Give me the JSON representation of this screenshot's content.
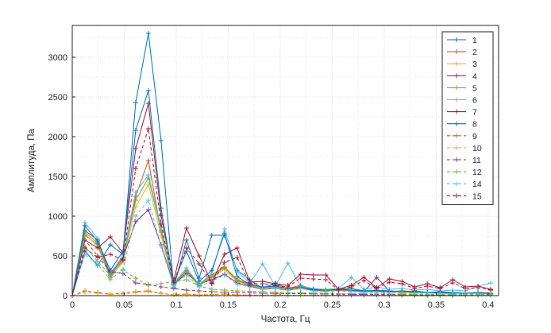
{
  "chart_data": {
    "type": "line",
    "title": "",
    "xlabel": "Частота, Гц",
    "ylabel": "Амплитуда, Па",
    "xlim": [
      0,
      0.41
    ],
    "ylim": [
      0,
      3400
    ],
    "xticks": [
      0,
      0.05,
      0.1,
      0.15,
      0.2,
      0.25,
      0.3,
      0.35,
      0.4
    ],
    "xtick_labels": [
      "0",
      "0.05",
      "0.1",
      "0.15",
      "0.2",
      "0.25",
      "0.3",
      "0.35",
      "0.4"
    ],
    "yticks": [
      0,
      500,
      1000,
      1500,
      2000,
      2500,
      3000
    ],
    "ytick_labels": [
      "0",
      "500",
      "1000",
      "1500",
      "2000",
      "2500",
      "3000"
    ],
    "grid": true,
    "legend_position": "top-right",
    "x": [
      0,
      0.0122,
      0.0244,
      0.0366,
      0.0488,
      0.061,
      0.0732,
      0.0854,
      0.0976,
      0.1098,
      0.122,
      0.1342,
      0.1464,
      0.1586,
      0.1708,
      0.183,
      0.1952,
      0.2074,
      0.2196,
      0.2318,
      0.2439,
      0.2561,
      0.2683,
      0.2805,
      0.2927,
      0.3049,
      0.3171,
      0.3293,
      0.3415,
      0.3537,
      0.3659,
      0.378,
      0.3902,
      0.4024
    ],
    "series": [
      {
        "name": "1",
        "color": "#0072BD",
        "style": "solid",
        "marker": "+",
        "values": [
          0,
          560,
          380,
          640,
          520,
          2430,
          3300,
          1950,
          100,
          700,
          220,
          760,
          760,
          320,
          200,
          90,
          160,
          80,
          110,
          90,
          60,
          80,
          90,
          60,
          70,
          60,
          50,
          60,
          40,
          50,
          40,
          30,
          40,
          30
        ]
      },
      {
        "name": "2",
        "color": "#D95319",
        "style": "solid",
        "marker": "+",
        "values": [
          0,
          760,
          640,
          250,
          440,
          1250,
          1700,
          800,
          150,
          320,
          140,
          260,
          360,
          200,
          150,
          100,
          120,
          90,
          130,
          80,
          70,
          80,
          70,
          60,
          60,
          50,
          60,
          50,
          40,
          40,
          40,
          30,
          40,
          30
        ]
      },
      {
        "name": "3",
        "color": "#EDB120",
        "style": "solid",
        "marker": "+",
        "values": [
          0,
          780,
          620,
          220,
          420,
          1120,
          1400,
          760,
          130,
          300,
          120,
          230,
          330,
          180,
          130,
          90,
          100,
          80,
          100,
          70,
          60,
          70,
          60,
          50,
          50,
          50,
          40,
          40,
          40,
          30,
          30,
          30,
          30,
          20
        ]
      },
      {
        "name": "4",
        "color": "#7E2F8E",
        "style": "solid",
        "marker": "+",
        "values": [
          0,
          820,
          700,
          260,
          480,
          930,
          1080,
          640,
          140,
          280,
          150,
          200,
          270,
          160,
          120,
          80,
          90,
          70,
          90,
          70,
          60,
          70,
          60,
          50,
          230,
          60,
          50,
          40,
          40,
          30,
          30,
          30,
          30,
          20
        ]
      },
      {
        "name": "5",
        "color": "#77AC30",
        "style": "solid",
        "marker": "+",
        "values": [
          0,
          800,
          660,
          230,
          460,
          1200,
          1480,
          820,
          140,
          310,
          130,
          240,
          350,
          190,
          140,
          100,
          110,
          90,
          110,
          80,
          60,
          70,
          60,
          50,
          60,
          50,
          50,
          40,
          40,
          40,
          30,
          30,
          30,
          20
        ]
      },
      {
        "name": "6",
        "color": "#4DBEEE",
        "style": "solid",
        "marker": "+",
        "values": [
          0,
          920,
          720,
          280,
          500,
          1300,
          1520,
          860,
          150,
          350,
          140,
          280,
          840,
          300,
          160,
          400,
          120,
          410,
          120,
          90,
          80,
          90,
          230,
          80,
          110,
          80,
          90,
          70,
          80,
          60,
          70,
          60,
          120,
          160
        ]
      },
      {
        "name": "7",
        "color": "#A2142F",
        "style": "solid",
        "marker": "+",
        "values": [
          0,
          700,
          600,
          740,
          540,
          1850,
          2420,
          1010,
          190,
          850,
          500,
          160,
          520,
          600,
          170,
          180,
          150,
          130,
          270,
          260,
          260,
          80,
          130,
          230,
          100,
          210,
          180,
          110,
          150,
          100,
          200,
          110,
          120,
          80
        ]
      },
      {
        "name": "8",
        "color": "#0072BD",
        "style": "solid",
        "marker": "+",
        "values": [
          0,
          880,
          680,
          320,
          560,
          2080,
          2580,
          1100,
          160,
          560,
          180,
          320,
          780,
          240,
          140,
          110,
          120,
          90,
          110,
          80,
          70,
          80,
          70,
          60,
          60,
          50,
          60,
          50,
          40,
          40,
          40,
          30,
          40,
          30
        ]
      },
      {
        "name": "9",
        "color": "#D95319",
        "style": "dashed",
        "marker": "+",
        "values": [
          0,
          60,
          40,
          20,
          30,
          50,
          60,
          30,
          10,
          20,
          10,
          15,
          20,
          10,
          8,
          6,
          8,
          5,
          6,
          5,
          4,
          5,
          4,
          3,
          4,
          3,
          3,
          3,
          2,
          2,
          2,
          2,
          2,
          2
        ]
      },
      {
        "name": "10",
        "color": "#EDB120",
        "style": "dashed",
        "marker": "+",
        "values": [
          0,
          40,
          30,
          15,
          20,
          40,
          50,
          25,
          8,
          15,
          8,
          12,
          15,
          8,
          6,
          5,
          6,
          4,
          5,
          4,
          3,
          4,
          3,
          3,
          3,
          2,
          2,
          2,
          2,
          2,
          2,
          1,
          1,
          1
        ]
      },
      {
        "name": "11",
        "color": "#7E2F8E",
        "style": "dashed",
        "marker": "+",
        "values": [
          0,
          700,
          500,
          300,
          280,
          160,
          140,
          110,
          90,
          70,
          60,
          50,
          45,
          40,
          35,
          30,
          28,
          26,
          24,
          22,
          20,
          18,
          16,
          15,
          14,
          13,
          12,
          11,
          10,
          9,
          8,
          8,
          7,
          6
        ]
      },
      {
        "name": "12",
        "color": "#77AC30",
        "style": "dashed",
        "marker": "+",
        "values": [
          0,
          620,
          430,
          260,
          320,
          220,
          130,
          150,
          180,
          200,
          120,
          80,
          70,
          60,
          55,
          50,
          45,
          40,
          38,
          35,
          30,
          28,
          26,
          24,
          22,
          20,
          18,
          16,
          15,
          14,
          13,
          12,
          11,
          10
        ]
      },
      {
        "name": "14",
        "color": "#4DBEEE",
        "style": "dashed",
        "marker": "+",
        "values": [
          0,
          520,
          400,
          200,
          330,
          1000,
          1200,
          620,
          120,
          260,
          110,
          180,
          260,
          140,
          110,
          80,
          90,
          70,
          90,
          60,
          50,
          60,
          50,
          40,
          40,
          40,
          30,
          30,
          30,
          30,
          20,
          20,
          20,
          20
        ]
      },
      {
        "name": "15",
        "color": "#A2142F",
        "style": "dashed",
        "marker": "+",
        "values": [
          0,
          600,
          480,
          520,
          450,
          1600,
          2100,
          900,
          170,
          600,
          400,
          150,
          420,
          480,
          150,
          150,
          130,
          110,
          220,
          210,
          200,
          70,
          110,
          190,
          90,
          170,
          150,
          90,
          120,
          90,
          160,
          90,
          100,
          70
        ]
      }
    ]
  }
}
